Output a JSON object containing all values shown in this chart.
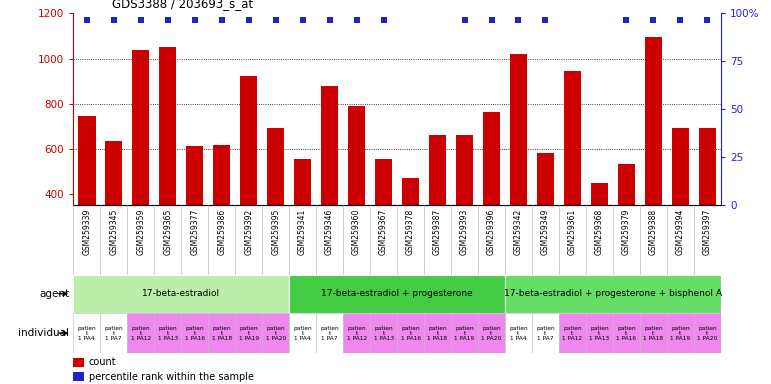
{
  "title": "GDS3388 / 203693_s_at",
  "bar_labels": [
    "GSM259339",
    "GSM259345",
    "GSM259359",
    "GSM259365",
    "GSM259377",
    "GSM259386",
    "GSM259392",
    "GSM259395",
    "GSM259341",
    "GSM259346",
    "GSM259360",
    "GSM259367",
    "GSM259378",
    "GSM259387",
    "GSM259393",
    "GSM259396",
    "GSM259342",
    "GSM259349",
    "GSM259361",
    "GSM259368",
    "GSM259379",
    "GSM259388",
    "GSM259394",
    "GSM259397"
  ],
  "bar_values": [
    745,
    637,
    1040,
    1050,
    612,
    618,
    925,
    692,
    557,
    880,
    790,
    556,
    470,
    660,
    660,
    765,
    1020,
    580,
    945,
    450,
    535,
    1095,
    695,
    695
  ],
  "percentile_shown": [
    true,
    true,
    true,
    true,
    true,
    true,
    true,
    true,
    true,
    true,
    true,
    true,
    false,
    false,
    true,
    true,
    true,
    true,
    false,
    false,
    true,
    true,
    true,
    true
  ],
  "bar_color": "#cc0000",
  "percentile_color": "#2222cc",
  "ylim_left": [
    350,
    1200
  ],
  "ylim_right": [
    0,
    100
  ],
  "yticks_left": [
    400,
    600,
    800,
    1000,
    1200
  ],
  "yticks_right": [
    0,
    25,
    50,
    75,
    100
  ],
  "grid_values": [
    600,
    800,
    1000
  ],
  "agent_groups": [
    {
      "label": "17-beta-estradiol",
      "start": 0,
      "end": 8,
      "color": "#bbeeaa"
    },
    {
      "label": "17-beta-estradiol + progesterone",
      "start": 8,
      "end": 16,
      "color": "#44cc44"
    },
    {
      "label": "17-beta-estradiol + progesterone + bisphenol A",
      "start": 16,
      "end": 24,
      "color": "#66dd66"
    }
  ],
  "individual_colors_base": [
    "#ffffff",
    "#ffffff",
    "#ee88ee",
    "#ee88ee",
    "#ee88ee",
    "#ee88ee",
    "#ee88ee",
    "#ee88ee"
  ],
  "ind_labels": [
    "patien\nt\n1 PA4",
    "patien\nt\n1 PA7",
    "patien\nt\n1 PA12",
    "patien\nt\n1 PA13",
    "patien\nt\n1 PA16",
    "patien\nt\n1 PA18",
    "patien\nt\n1 PA19",
    "patien\nt\n1 PA20"
  ],
  "background_color": "#ffffff",
  "xlabel_bg": "#cccccc",
  "right_axis_color": "#2222cc",
  "left_axis_color": "#cc0000"
}
